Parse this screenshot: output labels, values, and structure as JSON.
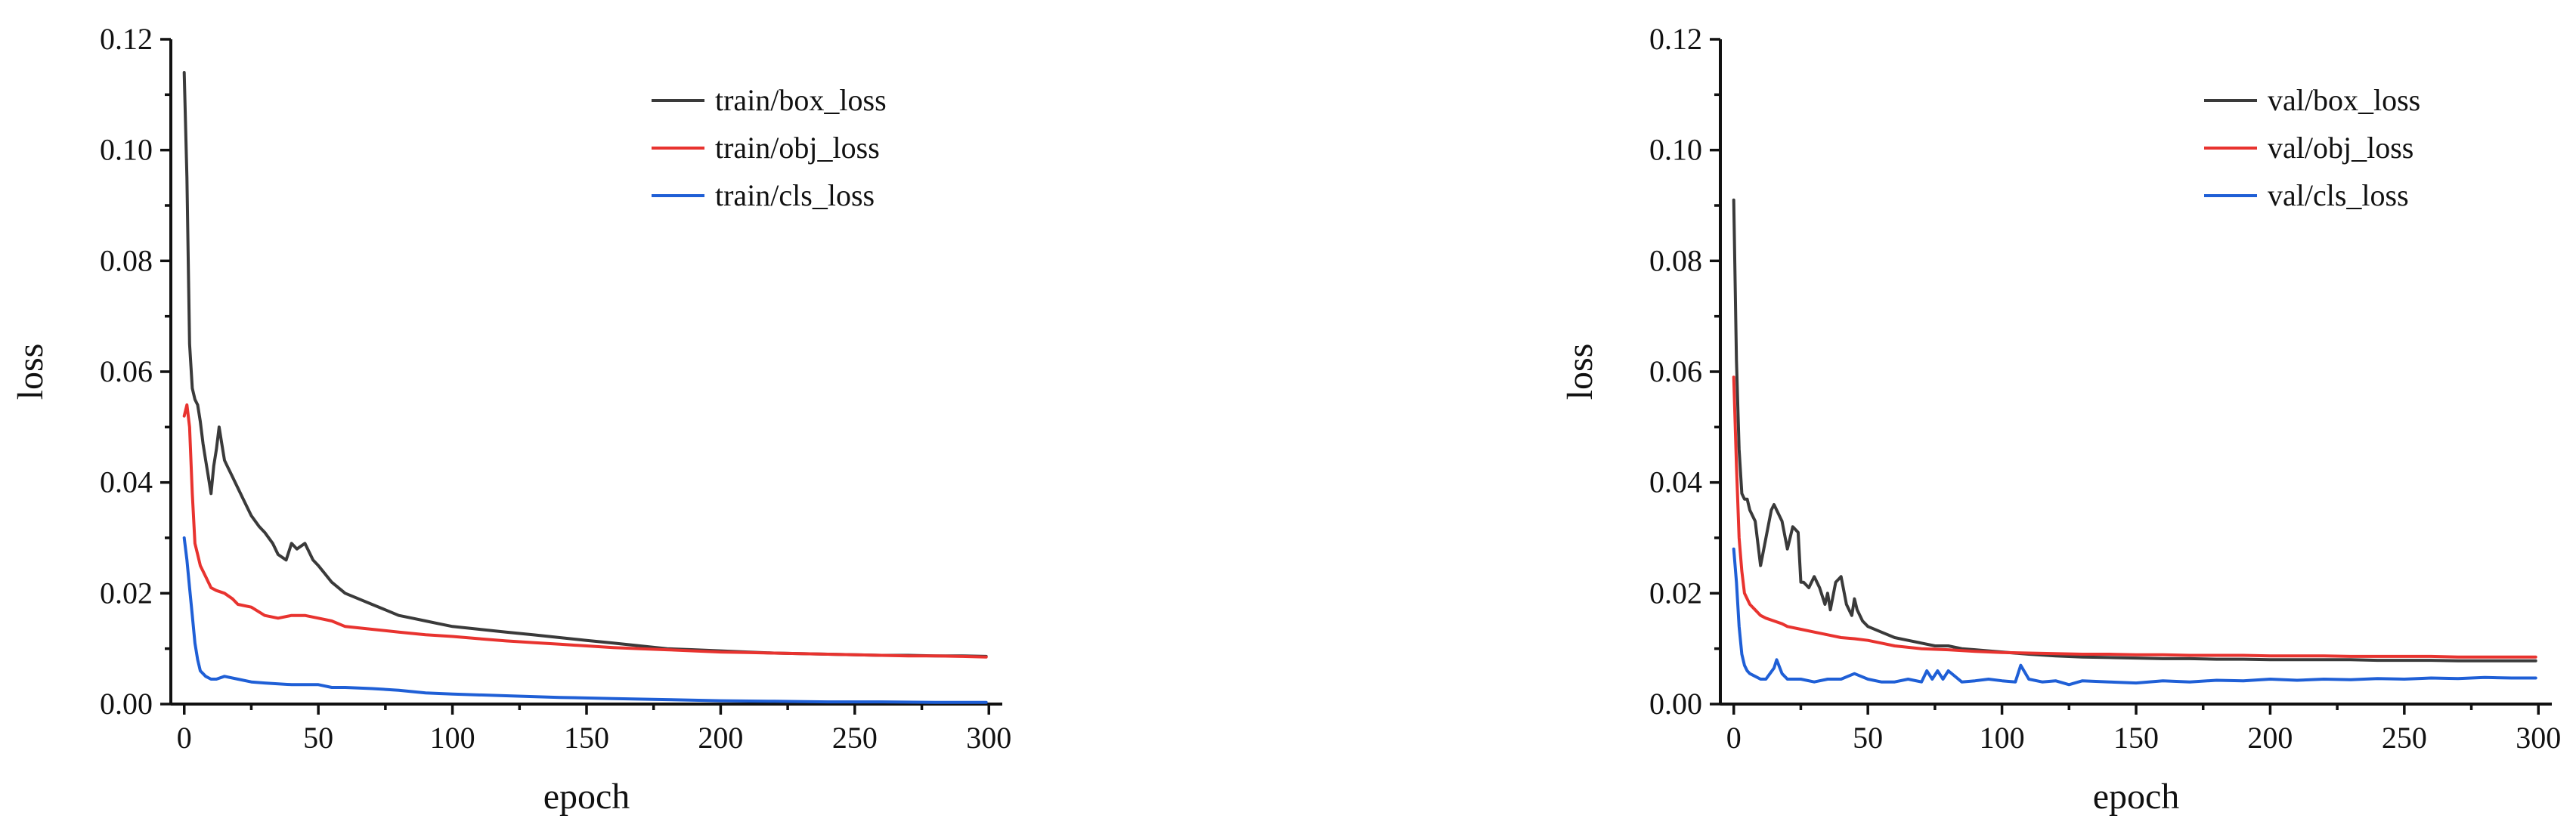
{
  "chart_data": [
    {
      "type": "line",
      "xlabel": "epoch",
      "ylabel": "loss",
      "xlim": [
        -5,
        305
      ],
      "ylim": [
        0,
        0.12
      ],
      "xticks": [
        "0",
        "50",
        "100",
        "150",
        "200",
        "250",
        "300"
      ],
      "yticks": [
        "0.00",
        "0.02",
        "0.04",
        "0.06",
        "0.08",
        "0.10",
        "0.12"
      ],
      "legend_position": "top-right",
      "grid": false,
      "series": [
        {
          "name": "train/box_loss",
          "color": "#3a3a3a",
          "x": [
            0,
            1,
            2,
            3,
            4,
            5,
            6,
            7,
            8,
            9,
            10,
            11,
            12,
            13,
            14,
            15,
            16,
            18,
            20,
            22,
            25,
            28,
            30,
            33,
            35,
            38,
            40,
            42,
            45,
            48,
            50,
            55,
            60,
            65,
            70,
            75,
            80,
            85,
            90,
            95,
            100,
            110,
            120,
            130,
            140,
            150,
            160,
            170,
            180,
            190,
            200,
            210,
            220,
            230,
            240,
            250,
            260,
            270,
            280,
            290,
            299
          ],
          "y": [
            0.114,
            0.095,
            0.065,
            0.057,
            0.055,
            0.054,
            0.051,
            0.047,
            0.044,
            0.041,
            0.038,
            0.043,
            0.046,
            0.05,
            0.047,
            0.044,
            0.043,
            0.041,
            0.039,
            0.037,
            0.034,
            0.032,
            0.031,
            0.029,
            0.027,
            0.026,
            0.029,
            0.028,
            0.029,
            0.026,
            0.025,
            0.022,
            0.02,
            0.019,
            0.018,
            0.017,
            0.016,
            0.0155,
            0.015,
            0.0145,
            0.014,
            0.0135,
            0.013,
            0.0125,
            0.012,
            0.0115,
            0.011,
            0.0105,
            0.01,
            0.0098,
            0.0096,
            0.0094,
            0.0092,
            0.0091,
            0.009,
            0.0089,
            0.0088,
            0.0088,
            0.0087,
            0.0087,
            0.0086
          ]
        },
        {
          "name": "train/obj_loss",
          "color": "#e8332f",
          "x": [
            0,
            1,
            2,
            3,
            4,
            5,
            6,
            8,
            10,
            12,
            15,
            18,
            20,
            25,
            30,
            35,
            40,
            45,
            50,
            55,
            60,
            70,
            80,
            90,
            100,
            110,
            120,
            130,
            140,
            150,
            160,
            170,
            180,
            190,
            200,
            210,
            220,
            230,
            240,
            250,
            260,
            270,
            280,
            290,
            299
          ],
          "y": [
            0.052,
            0.054,
            0.05,
            0.038,
            0.029,
            0.027,
            0.025,
            0.023,
            0.021,
            0.0205,
            0.02,
            0.019,
            0.018,
            0.0175,
            0.016,
            0.0155,
            0.016,
            0.016,
            0.0155,
            0.015,
            0.014,
            0.0135,
            0.013,
            0.0125,
            0.0122,
            0.0118,
            0.0114,
            0.0111,
            0.0108,
            0.0105,
            0.0102,
            0.01,
            0.0098,
            0.0096,
            0.0094,
            0.0093,
            0.0092,
            0.0091,
            0.009,
            0.0089,
            0.0088,
            0.0087,
            0.0087,
            0.0086,
            0.0085
          ]
        },
        {
          "name": "train/cls_loss",
          "color": "#1f5fd6",
          "x": [
            0,
            1,
            2,
            3,
            4,
            5,
            6,
            7,
            8,
            10,
            12,
            15,
            20,
            25,
            30,
            40,
            50,
            55,
            60,
            70,
            80,
            90,
            100,
            120,
            140,
            160,
            180,
            200,
            220,
            240,
            260,
            280,
            299
          ],
          "y": [
            0.03,
            0.026,
            0.021,
            0.016,
            0.011,
            0.008,
            0.006,
            0.0055,
            0.005,
            0.0045,
            0.0045,
            0.005,
            0.0045,
            0.004,
            0.0038,
            0.0035,
            0.0035,
            0.003,
            0.003,
            0.0028,
            0.0025,
            0.002,
            0.0018,
            0.0015,
            0.0012,
            0.001,
            0.0008,
            0.0006,
            0.0005,
            0.0004,
            0.0004,
            0.0003,
            0.0003
          ]
        }
      ]
    },
    {
      "type": "line",
      "xlabel": "epoch",
      "ylabel": "loss",
      "xlim": [
        -5,
        305
      ],
      "ylim": [
        0,
        0.12
      ],
      "xticks": [
        "0",
        "50",
        "100",
        "150",
        "200",
        "250",
        "300"
      ],
      "yticks": [
        "0.00",
        "0.02",
        "0.04",
        "0.06",
        "0.08",
        "0.10",
        "0.12"
      ],
      "legend_position": "top-right",
      "grid": false,
      "series": [
        {
          "name": "val/box_loss",
          "color": "#3a3a3a",
          "x": [
            0,
            1,
            2,
            3,
            4,
            5,
            6,
            8,
            10,
            12,
            14,
            15,
            16,
            18,
            20,
            22,
            24,
            25,
            26,
            28,
            30,
            32,
            34,
            35,
            36,
            38,
            40,
            42,
            44,
            45,
            46,
            48,
            50,
            55,
            60,
            65,
            70,
            75,
            80,
            85,
            90,
            95,
            100,
            110,
            120,
            130,
            140,
            150,
            160,
            170,
            180,
            190,
            200,
            210,
            220,
            230,
            240,
            250,
            260,
            270,
            280,
            290,
            299
          ],
          "y": [
            0.091,
            0.062,
            0.046,
            0.038,
            0.037,
            0.037,
            0.035,
            0.033,
            0.025,
            0.03,
            0.035,
            0.036,
            0.035,
            0.033,
            0.028,
            0.032,
            0.031,
            0.022,
            0.022,
            0.021,
            0.023,
            0.021,
            0.018,
            0.02,
            0.017,
            0.022,
            0.023,
            0.018,
            0.016,
            0.019,
            0.017,
            0.015,
            0.014,
            0.013,
            0.012,
            0.0115,
            0.011,
            0.0105,
            0.0105,
            0.01,
            0.0098,
            0.0096,
            0.0094,
            0.009,
            0.0087,
            0.0085,
            0.0084,
            0.0083,
            0.0082,
            0.0082,
            0.0081,
            0.0081,
            0.008,
            0.008,
            0.008,
            0.008,
            0.0079,
            0.0079,
            0.0079,
            0.0078,
            0.0078,
            0.0078,
            0.0078
          ]
        },
        {
          "name": "val/obj_loss",
          "color": "#e8332f",
          "x": [
            0,
            1,
            2,
            3,
            4,
            5,
            6,
            8,
            10,
            12,
            15,
            18,
            20,
            25,
            30,
            35,
            40,
            45,
            50,
            55,
            60,
            70,
            80,
            90,
            100,
            110,
            120,
            130,
            140,
            150,
            160,
            170,
            180,
            190,
            200,
            210,
            220,
            230,
            240,
            250,
            260,
            270,
            280,
            290,
            299
          ],
          "y": [
            0.059,
            0.043,
            0.03,
            0.024,
            0.02,
            0.019,
            0.018,
            0.017,
            0.016,
            0.0155,
            0.015,
            0.0145,
            0.014,
            0.0135,
            0.013,
            0.0125,
            0.012,
            0.0118,
            0.0115,
            0.011,
            0.0105,
            0.01,
            0.0098,
            0.0095,
            0.0093,
            0.0092,
            0.0091,
            0.009,
            0.009,
            0.0089,
            0.0089,
            0.0088,
            0.0088,
            0.0088,
            0.0087,
            0.0087,
            0.0087,
            0.0086,
            0.0086,
            0.0086,
            0.0086,
            0.0085,
            0.0085,
            0.0085,
            0.0085
          ]
        },
        {
          "name": "val/cls_loss",
          "color": "#1f5fd6",
          "x": [
            0,
            1,
            2,
            3,
            4,
            5,
            6,
            8,
            10,
            12,
            15,
            16,
            18,
            20,
            25,
            30,
            35,
            40,
            45,
            50,
            55,
            60,
            65,
            70,
            72,
            74,
            76,
            78,
            80,
            85,
            90,
            95,
            100,
            105,
            107,
            110,
            115,
            120,
            125,
            130,
            140,
            150,
            160,
            170,
            180,
            190,
            200,
            210,
            220,
            230,
            240,
            250,
            260,
            270,
            280,
            290,
            299
          ],
          "y": [
            0.028,
            0.022,
            0.014,
            0.009,
            0.007,
            0.006,
            0.0055,
            0.005,
            0.0045,
            0.0045,
            0.0065,
            0.008,
            0.0055,
            0.0045,
            0.0045,
            0.004,
            0.0045,
            0.0045,
            0.0055,
            0.0045,
            0.004,
            0.004,
            0.0045,
            0.004,
            0.006,
            0.0045,
            0.006,
            0.0045,
            0.006,
            0.004,
            0.0042,
            0.0045,
            0.0042,
            0.004,
            0.007,
            0.0045,
            0.004,
            0.0042,
            0.0035,
            0.0042,
            0.004,
            0.0038,
            0.0042,
            0.004,
            0.0043,
            0.0042,
            0.0045,
            0.0043,
            0.0045,
            0.0044,
            0.0046,
            0.0045,
            0.0047,
            0.0046,
            0.0048,
            0.0047,
            0.0047
          ]
        }
      ]
    }
  ]
}
